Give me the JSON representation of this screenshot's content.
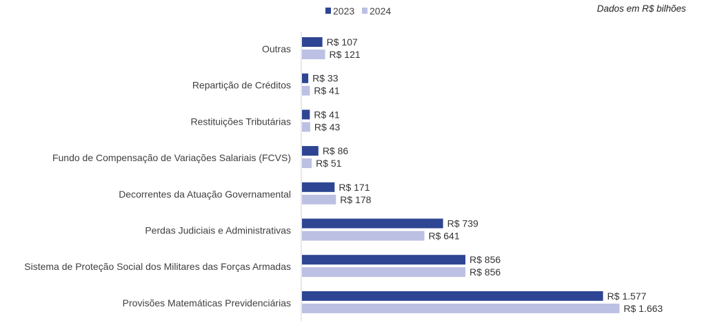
{
  "note": "Dados em R$ bilhões",
  "legend": [
    {
      "label": "2023",
      "color": "#2e4593"
    },
    {
      "label": "2024",
      "color": "#bcc0e3"
    }
  ],
  "chart_data": {
    "type": "bar",
    "orientation": "horizontal",
    "categories": [
      "Outras",
      "Repartição de Créditos",
      "Restituições Tributárias",
      "Fundo de Compensação de Variações Salariais (FCVS)",
      "Decorrentes da Atuação Governamental",
      "Perdas Judiciais e Administrativas",
      "Sistema de Proteção Social dos Militares das Forças Armadas",
      "Provisões Matemáticas Previdenciárias"
    ],
    "series": [
      {
        "name": "2023",
        "color": "#2e4593",
        "values": [
          107,
          33,
          41,
          86,
          171,
          739,
          856,
          1577
        ],
        "labels": [
          "R$ 107",
          "R$ 33",
          "R$ 41",
          "R$ 86",
          "R$ 171",
          "R$ 739",
          "R$ 856",
          "R$ 1.577"
        ]
      },
      {
        "name": "2024",
        "color": "#bcc0e3",
        "values": [
          121,
          41,
          43,
          51,
          178,
          641,
          856,
          1663
        ],
        "labels": [
          "R$ 121",
          "R$ 41",
          "R$ 43",
          "R$ 51",
          "R$ 178",
          "R$ 641",
          "R$ 856",
          "R$ 1.663"
        ]
      }
    ],
    "xlim": [
      0,
      1700
    ],
    "grid": false,
    "legend_position": "top"
  }
}
